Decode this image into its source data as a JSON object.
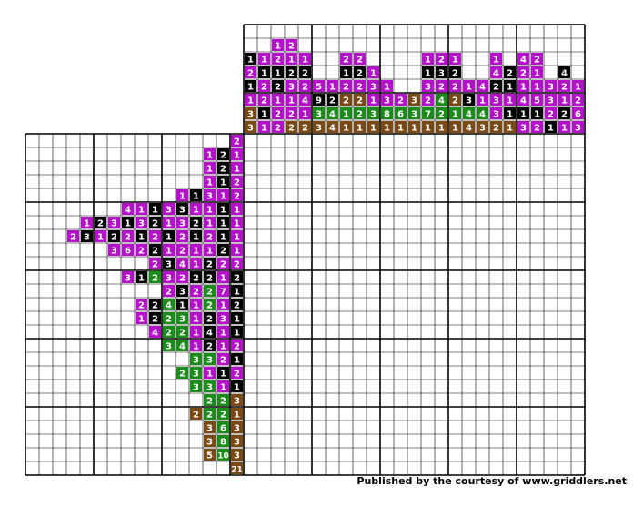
{
  "colors": {
    "purple": "#b40fc9",
    "black": "#000000",
    "green": "#1a8c1a",
    "brown": "#7a4a14",
    "grid_line": "#000000",
    "label_text": "#ffffff",
    "background": "#ffffff"
  },
  "column_clues": [
    [
      [
        "K",
        1
      ],
      [
        "P",
        2
      ],
      [
        "K",
        1
      ],
      [
        "P",
        1
      ],
      [
        "B",
        3
      ],
      [
        "B",
        3
      ]
    ],
    [
      [
        "P",
        1
      ],
      [
        "K",
        1
      ],
      [
        "P",
        2
      ],
      [
        "P",
        2
      ],
      [
        "K",
        1
      ],
      [
        "P",
        1
      ]
    ],
    [
      [
        "P",
        1
      ],
      [
        "P",
        2
      ],
      [
        "K",
        1
      ],
      [
        "K",
        2
      ],
      [
        "P",
        1
      ],
      [
        "P",
        2
      ],
      [
        "P",
        2
      ]
    ],
    [
      [
        "P",
        2
      ],
      [
        "P",
        1
      ],
      [
        "K",
        2
      ],
      [
        "P",
        3
      ],
      [
        "P",
        1
      ],
      [
        "P",
        2
      ],
      [
        "B",
        2
      ]
    ],
    [
      [
        "P",
        1
      ],
      [
        "K",
        2
      ],
      [
        "P",
        2
      ],
      [
        "P",
        4
      ],
      [
        "P",
        1
      ],
      [
        "B",
        2
      ]
    ],
    [
      [
        "P",
        5
      ],
      [
        "K",
        9
      ],
      [
        "G",
        3
      ],
      [
        "B",
        3
      ]
    ],
    [
      [
        "P",
        1
      ],
      [
        "K",
        2
      ],
      [
        "G",
        4
      ],
      [
        "B",
        4
      ]
    ],
    [
      [
        "P",
        2
      ],
      [
        "K",
        1
      ],
      [
        "P",
        2
      ],
      [
        "B",
        2
      ],
      [
        "G",
        1
      ],
      [
        "B",
        1
      ]
    ],
    [
      [
        "P",
        2
      ],
      [
        "K",
        2
      ],
      [
        "P",
        2
      ],
      [
        "B",
        2
      ],
      [
        "G",
        2
      ],
      [
        "B",
        1
      ]
    ],
    [
      [
        "P",
        1
      ],
      [
        "P",
        3
      ],
      [
        "P",
        1
      ],
      [
        "G",
        3
      ],
      [
        "B",
        1
      ]
    ],
    [
      [
        "P",
        1
      ],
      [
        "P",
        3
      ],
      [
        "G",
        8
      ],
      [
        "B",
        1
      ]
    ],
    [
      [
        "P",
        2
      ],
      [
        "G",
        6
      ],
      [
        "B",
        1
      ]
    ],
    [
      [
        "B",
        3
      ],
      [
        "G",
        3
      ],
      [
        "B",
        1
      ]
    ],
    [
      [
        "P",
        1
      ],
      [
        "K",
        1
      ],
      [
        "P",
        3
      ],
      [
        "P",
        2
      ],
      [
        "G",
        7
      ],
      [
        "B",
        1
      ]
    ],
    [
      [
        "P",
        2
      ],
      [
        "K",
        3
      ],
      [
        "P",
        2
      ],
      [
        "G",
        4
      ],
      [
        "G",
        2
      ],
      [
        "B",
        1
      ]
    ],
    [
      [
        "P",
        1
      ],
      [
        "K",
        2
      ],
      [
        "P",
        2
      ],
      [
        "B",
        2
      ],
      [
        "G",
        1
      ],
      [
        "B",
        1
      ]
    ],
    [
      [
        "P",
        1
      ],
      [
        "K",
        3
      ],
      [
        "G",
        4
      ],
      [
        "B",
        4
      ]
    ],
    [
      [
        "P",
        4
      ],
      [
        "P",
        1
      ],
      [
        "G",
        4
      ],
      [
        "B",
        3
      ]
    ],
    [
      [
        "P",
        1
      ],
      [
        "P",
        4
      ],
      [
        "K",
        2
      ],
      [
        "P",
        3
      ],
      [
        "P",
        3
      ],
      [
        "B",
        2
      ]
    ],
    [
      [
        "K",
        2
      ],
      [
        "K",
        1
      ],
      [
        "P",
        1
      ],
      [
        "K",
        1
      ],
      [
        "B",
        1
      ]
    ],
    [
      [
        "P",
        4
      ],
      [
        "P",
        2
      ],
      [
        "P",
        1
      ],
      [
        "P",
        4
      ],
      [
        "K",
        1
      ],
      [
        "P",
        3
      ]
    ],
    [
      [
        "P",
        2
      ],
      [
        "P",
        1
      ],
      [
        "P",
        1
      ],
      [
        "P",
        5
      ],
      [
        "K",
        1
      ],
      [
        "P",
        2
      ]
    ],
    [
      [
        "P",
        3
      ],
      [
        "P",
        3
      ],
      [
        "P",
        2
      ],
      [
        "K",
        1
      ]
    ],
    [
      [
        "K",
        4
      ],
      [
        "P",
        2
      ],
      [
        "P",
        1
      ],
      [
        "K",
        2
      ],
      [
        "P",
        1
      ]
    ],
    [
      [
        "P",
        1
      ],
      [
        "P",
        2
      ],
      [
        "P",
        6
      ],
      [
        "P",
        3
      ]
    ]
  ],
  "row_clues": [
    [
      [
        "P",
        2
      ]
    ],
    [
      [
        "P",
        1
      ],
      [
        "K",
        2
      ],
      [
        "P",
        1
      ]
    ],
    [
      [
        "P",
        1
      ],
      [
        "K",
        2
      ],
      [
        "P",
        1
      ]
    ],
    [
      [
        "P",
        1
      ],
      [
        "K",
        1
      ],
      [
        "P",
        2
      ]
    ],
    [
      [
        "P",
        1
      ],
      [
        "K",
        1
      ],
      [
        "P",
        3
      ],
      [
        "P",
        1
      ],
      [
        "P",
        2
      ]
    ],
    [
      [
        "P",
        4
      ],
      [
        "P",
        1
      ],
      [
        "K",
        1
      ],
      [
        "P",
        3
      ],
      [
        "K",
        3
      ],
      [
        "P",
        1
      ],
      [
        "P",
        1
      ],
      [
        "K",
        1
      ],
      [
        "P",
        1
      ]
    ],
    [
      [
        "P",
        1
      ],
      [
        "K",
        2
      ],
      [
        "P",
        3
      ],
      [
        "K",
        1
      ],
      [
        "P",
        3
      ],
      [
        "K",
        2
      ],
      [
        "P",
        1
      ],
      [
        "P",
        3
      ],
      [
        "K",
        2
      ],
      [
        "P",
        1
      ],
      [
        "K",
        1
      ],
      [
        "P",
        1
      ]
    ],
    [
      [
        "P",
        2
      ],
      [
        "K",
        3
      ],
      [
        "P",
        1
      ],
      [
        "K",
        2
      ],
      [
        "P",
        2
      ],
      [
        "K",
        1
      ],
      [
        "P",
        2
      ],
      [
        "K",
        1
      ],
      [
        "P",
        2
      ],
      [
        "K",
        1
      ],
      [
        "P",
        2
      ],
      [
        "K",
        1
      ],
      [
        "P",
        1
      ]
    ],
    [
      [
        "P",
        3
      ],
      [
        "P",
        6
      ],
      [
        "P",
        2
      ],
      [
        "K",
        2
      ],
      [
        "P",
        1
      ],
      [
        "P",
        2
      ],
      [
        "P",
        1
      ],
      [
        "P",
        1
      ],
      [
        "K",
        2
      ],
      [
        "P",
        1
      ]
    ],
    [
      [
        "P",
        2
      ],
      [
        "K",
        3
      ],
      [
        "P",
        4
      ],
      [
        "P",
        1
      ],
      [
        "K",
        2
      ],
      [
        "P",
        2
      ],
      [
        "P",
        2
      ]
    ],
    [
      [
        "P",
        3
      ],
      [
        "K",
        1
      ],
      [
        "G",
        2
      ],
      [
        "P",
        3
      ],
      [
        "P",
        2
      ],
      [
        "K",
        2
      ],
      [
        "K",
        2
      ],
      [
        "P",
        1
      ],
      [
        "K",
        2
      ]
    ],
    [
      [
        "P",
        2
      ],
      [
        "K",
        3
      ],
      [
        "P",
        2
      ],
      [
        "G",
        2
      ],
      [
        "P",
        7
      ],
      [
        "K",
        1
      ]
    ],
    [
      [
        "P",
        2
      ],
      [
        "K",
        2
      ],
      [
        "G",
        4
      ],
      [
        "K",
        1
      ],
      [
        "P",
        1
      ],
      [
        "G",
        2
      ],
      [
        "P",
        1
      ],
      [
        "K",
        2
      ]
    ],
    [
      [
        "P",
        1
      ],
      [
        "K",
        2
      ],
      [
        "G",
        2
      ],
      [
        "G",
        3
      ],
      [
        "P",
        1
      ],
      [
        "K",
        2
      ],
      [
        "P",
        3
      ],
      [
        "K",
        1
      ]
    ],
    [
      [
        "P",
        4
      ],
      [
        "G",
        2
      ],
      [
        "G",
        2
      ],
      [
        "P",
        1
      ],
      [
        "K",
        4
      ],
      [
        "P",
        1
      ],
      [
        "K",
        1
      ]
    ],
    [
      [
        "G",
        3
      ],
      [
        "G",
        4
      ],
      [
        "P",
        1
      ],
      [
        "K",
        2
      ],
      [
        "P",
        1
      ],
      [
        "P",
        2
      ]
    ],
    [
      [
        "G",
        3
      ],
      [
        "G",
        3
      ],
      [
        "P",
        2
      ],
      [
        "K",
        1
      ]
    ],
    [
      [
        "G",
        2
      ],
      [
        "G",
        3
      ],
      [
        "P",
        1
      ],
      [
        "K",
        1
      ],
      [
        "P",
        2
      ]
    ],
    [
      [
        "G",
        3
      ],
      [
        "G",
        3
      ],
      [
        "P",
        1
      ],
      [
        "K",
        1
      ]
    ],
    [
      [
        "G",
        2
      ],
      [
        "G",
        2
      ],
      [
        "B",
        3
      ]
    ],
    [
      [
        "B",
        2
      ],
      [
        "G",
        2
      ],
      [
        "G",
        2
      ],
      [
        "B",
        1
      ]
    ],
    [
      [
        "B",
        3
      ],
      [
        "G",
        6
      ],
      [
        "B",
        3
      ]
    ],
    [
      [
        "B",
        3
      ],
      [
        "G",
        8
      ],
      [
        "B",
        3
      ]
    ],
    [
      [
        "B",
        5
      ],
      [
        "G",
        10
      ],
      [
        "B",
        3
      ]
    ],
    [
      [
        "B",
        21
      ]
    ]
  ],
  "footer": "Published by the courtesy of www.griddlers.net"
}
